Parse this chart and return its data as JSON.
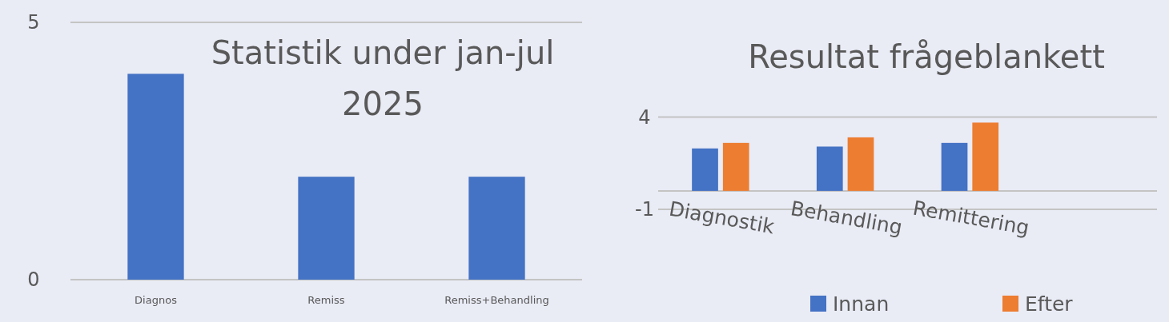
{
  "chart_data": [
    {
      "type": "bar",
      "title": "Statistik under jan-jul 2025",
      "categories": [
        "Diagnos",
        "Remiss",
        "Remiss+Behandling"
      ],
      "series": [
        {
          "color": "#4472c4",
          "values": [
            4,
            2,
            2
          ]
        }
      ],
      "ylim": [
        0,
        5
      ],
      "yticks": [
        0,
        5
      ]
    },
    {
      "type": "bar",
      "title": "Resultat frågeblankett",
      "categories": [
        "Diagnostik",
        "Behandling",
        "Remittering",
        null
      ],
      "series": [
        {
          "name": "Innan",
          "color": "#4472c4",
          "values": [
            2.3,
            2.4,
            2.6,
            null
          ]
        },
        {
          "name": "Efter",
          "color": "#ed7d31",
          "values": [
            2.6,
            2.9,
            3.7,
            null
          ]
        }
      ],
      "ylim": [
        -1,
        4
      ],
      "yticks": [
        4,
        -1
      ],
      "legend": "bottom"
    }
  ]
}
